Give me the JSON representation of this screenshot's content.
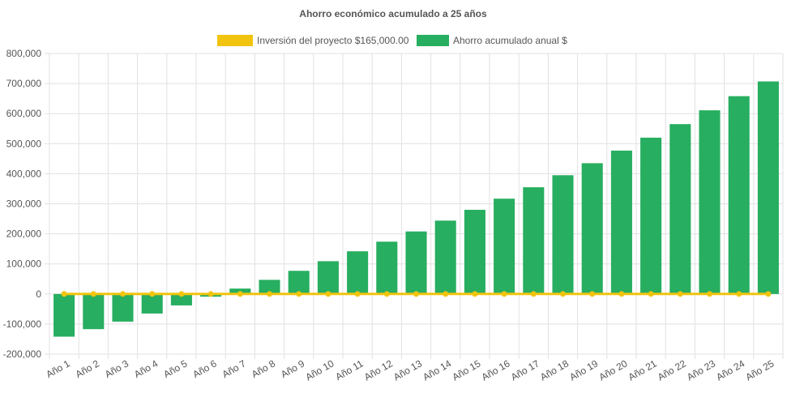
{
  "chart_data": {
    "type": "bar",
    "title": "Ahorro económico acumulado a 25 años",
    "categories": [
      "Año 1",
      "Año 2",
      "Año 3",
      "Año 4",
      "Año 5",
      "Año 6",
      "Año 7",
      "Año 8",
      "Año 9",
      "Año 10",
      "Año 11",
      "Año 12",
      "Año 13",
      "Año 14",
      "Año 15",
      "Año 16",
      "Año 17",
      "Año 18",
      "Año 19",
      "Año 20",
      "Año 21",
      "Año 22",
      "Año 23",
      "Año 24",
      "Año 25"
    ],
    "series": [
      {
        "name": "Inversión del proyecto $165,000.00",
        "type": "line",
        "color": "#f1c40f",
        "values": [
          0,
          0,
          0,
          0,
          0,
          0,
          0,
          0,
          0,
          0,
          0,
          0,
          0,
          0,
          0,
          0,
          0,
          0,
          0,
          0,
          0,
          0,
          0,
          0,
          0
        ]
      },
      {
        "name": "Ahorro acumulado anual $",
        "type": "bar",
        "color": "#27ae60",
        "values": [
          -142000,
          -117000,
          -92000,
          -65000,
          -38000,
          -9000,
          18000,
          47000,
          77000,
          109000,
          142000,
          174000,
          208000,
          244000,
          280000,
          317000,
          355000,
          395000,
          435000,
          477000,
          520000,
          565000,
          611000,
          658000,
          707000
        ]
      }
    ],
    "ylim": [
      -200000,
      800000
    ],
    "yticks": [
      "800,000",
      "700,000",
      "600,000",
      "500,000",
      "400,000",
      "300,000",
      "200,000",
      "100,000",
      "0",
      "-100,000",
      "-200,000"
    ],
    "ytick_values": [
      800000,
      700000,
      600000,
      500000,
      400000,
      300000,
      200000,
      100000,
      0,
      -100000,
      -200000
    ],
    "grid": true,
    "legend_position": "top"
  }
}
